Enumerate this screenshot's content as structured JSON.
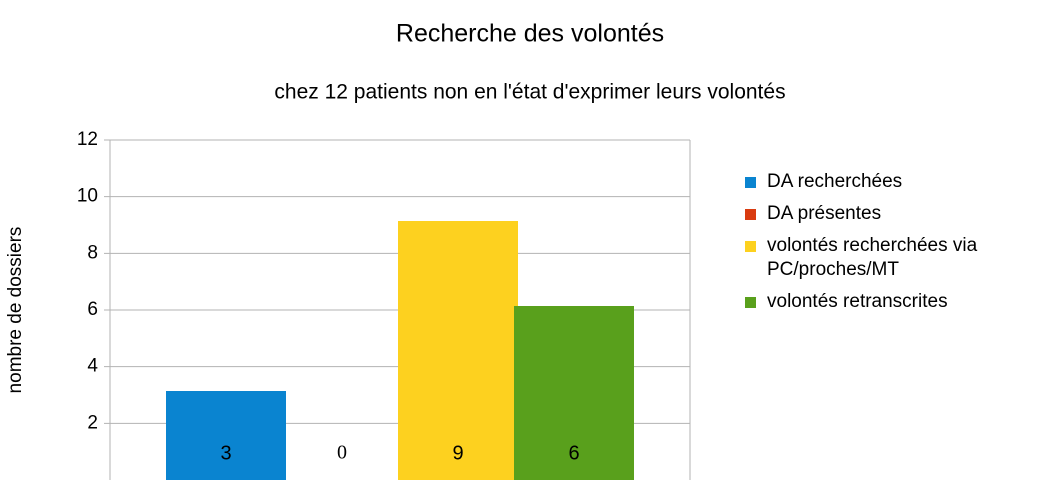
{
  "chart_data": {
    "type": "bar",
    "title": "Recherche des volontés",
    "subtitle": "chez 12 patients non en l'état d'exprimer leurs volontés",
    "y_label": "nombre de dossiers",
    "categories": [
      null
    ],
    "series": [
      {
        "name": "DA recherchées",
        "color": "#0a84d0",
        "values": [
          3
        ]
      },
      {
        "name": "DA présentes",
        "color": "#d93b10",
        "values": [
          0
        ]
      },
      {
        "name": "volontés recherchées via PC/proches/MT",
        "color": "#fdd11f",
        "values": [
          9
        ]
      },
      {
        "name": "volontés retranscrites",
        "color": "#59a01c",
        "values": [
          6
        ]
      }
    ],
    "ylim": [
      0,
      12
    ],
    "yticks": [
      2,
      4,
      6,
      8,
      10,
      12
    ],
    "grid": true,
    "legend": "right"
  }
}
